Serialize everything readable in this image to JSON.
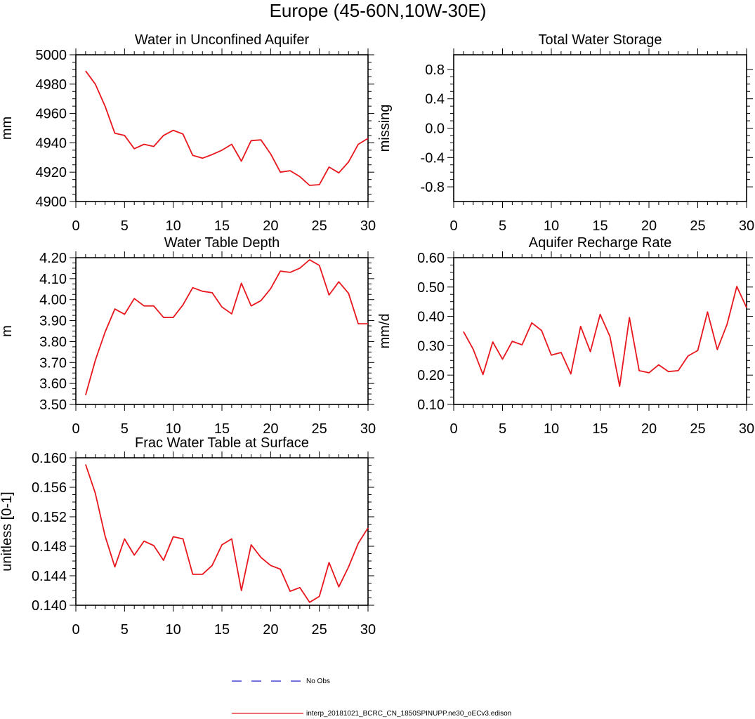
{
  "figure_title": "Europe (45-60N,10W-30E)",
  "colors": {
    "model_line": "#e8161d",
    "obs_line": "#1f1fd0",
    "axis": "#000000"
  },
  "legend": {
    "obs_label": "No Obs",
    "model_label": "interp_20181021_BCRC_CN_1850SPINUPP.ne30_oECv3.edison"
  },
  "chart_data": [
    {
      "type": "line",
      "title": "Water in Unconfined Aquifer",
      "ylabel": "mm",
      "xlim": [
        0,
        30
      ],
      "ylim": [
        4900,
        5000
      ],
      "xticks": [
        0,
        5,
        10,
        15,
        20,
        25,
        30
      ],
      "yticks": [
        4900,
        4920,
        4940,
        4960,
        4980,
        5000
      ],
      "ytick_labels": [
        "4900",
        "4920",
        "4940",
        "4960",
        "4980",
        "5000"
      ],
      "x": [
        1,
        2,
        3,
        4,
        5,
        6,
        7,
        8,
        9,
        10,
        11,
        12,
        13,
        14,
        15,
        16,
        17,
        18,
        19,
        20,
        21,
        22,
        23,
        24,
        25,
        26,
        27,
        28,
        29,
        30
      ],
      "series": [
        {
          "name": "model",
          "values": [
            4989,
            4980,
            4965,
            4946.5,
            4945,
            4936,
            4939,
            4937.5,
            4945,
            4948.5,
            4946,
            4931.5,
            4929.5,
            4932,
            4935,
            4939,
            4927.5,
            4941.5,
            4942,
            4932.5,
            4920,
            4921,
            4917,
            4911,
            4911.5,
            4923.5,
            4919.5,
            4927,
            4939,
            4943
          ]
        }
      ]
    },
    {
      "type": "line",
      "title": "Total Water Storage",
      "ylabel": "missing",
      "xlim": [
        0,
        30
      ],
      "ylim": [
        -1,
        1
      ],
      "xticks": [
        0,
        5,
        10,
        15,
        20,
        25,
        30
      ],
      "yticks": [
        -0.8,
        -0.4,
        0.0,
        0.4,
        0.8
      ],
      "ytick_labels": [
        "-0.8",
        "-0.4",
        "0.0",
        "0.4",
        "0.8"
      ],
      "x": [],
      "series": []
    },
    {
      "type": "line",
      "title": "Water Table Depth",
      "ylabel": "m",
      "xlim": [
        0,
        30
      ],
      "ylim": [
        3.5,
        4.2
      ],
      "xticks": [
        0,
        5,
        10,
        15,
        20,
        25,
        30
      ],
      "yticks": [
        3.5,
        3.6,
        3.7,
        3.8,
        3.9,
        4.0,
        4.1,
        4.2
      ],
      "ytick_labels": [
        "3.50",
        "3.60",
        "3.70",
        "3.80",
        "3.90",
        "4.00",
        "4.10",
        "4.20"
      ],
      "x": [
        1,
        2,
        3,
        4,
        5,
        6,
        7,
        8,
        9,
        10,
        11,
        12,
        13,
        14,
        15,
        16,
        17,
        18,
        19,
        20,
        21,
        22,
        23,
        24,
        25,
        26,
        27,
        28,
        29,
        30
      ],
      "series": [
        {
          "name": "model",
          "values": [
            3.545,
            3.71,
            3.845,
            3.955,
            3.93,
            4.005,
            3.97,
            3.97,
            3.915,
            3.915,
            3.975,
            4.057,
            4.04,
            4.033,
            3.965,
            3.932,
            4.078,
            3.97,
            3.995,
            4.052,
            4.136,
            4.13,
            4.15,
            4.19,
            4.163,
            4.022,
            4.085,
            4.03,
            3.885,
            3.885
          ]
        }
      ]
    },
    {
      "type": "line",
      "title": "Aquifer Recharge Rate",
      "ylabel": "mm/d",
      "xlim": [
        0,
        30
      ],
      "ylim": [
        0.1,
        0.6
      ],
      "xticks": [
        0,
        5,
        10,
        15,
        20,
        25,
        30
      ],
      "yticks": [
        0.1,
        0.2,
        0.3,
        0.4,
        0.5,
        0.6
      ],
      "ytick_labels": [
        "0.10",
        "0.20",
        "0.30",
        "0.40",
        "0.50",
        "0.60"
      ],
      "x": [
        1,
        2,
        3,
        4,
        5,
        6,
        7,
        8,
        9,
        10,
        11,
        12,
        13,
        14,
        15,
        16,
        17,
        18,
        19,
        20,
        21,
        22,
        23,
        24,
        25,
        26,
        27,
        28,
        29,
        30
      ],
      "series": [
        {
          "name": "model",
          "values": [
            0.348,
            0.288,
            0.202,
            0.313,
            0.254,
            0.315,
            0.303,
            0.378,
            0.352,
            0.268,
            0.277,
            0.204,
            0.366,
            0.28,
            0.407,
            0.332,
            0.162,
            0.396,
            0.215,
            0.208,
            0.235,
            0.212,
            0.215,
            0.265,
            0.284,
            0.415,
            0.287,
            0.373,
            0.502,
            0.43
          ]
        }
      ]
    },
    {
      "type": "line",
      "title": "Frac Water Table at Surface",
      "ylabel": "unitless [0-1]",
      "xlim": [
        0,
        30
      ],
      "ylim": [
        0.14,
        0.16
      ],
      "xticks": [
        0,
        5,
        10,
        15,
        20,
        25,
        30
      ],
      "yticks": [
        0.14,
        0.144,
        0.148,
        0.152,
        0.156,
        0.16
      ],
      "ytick_labels": [
        "0.140",
        "0.144",
        "0.148",
        "0.152",
        "0.156",
        "0.160"
      ],
      "x": [
        1,
        2,
        3,
        4,
        5,
        6,
        7,
        8,
        9,
        10,
        11,
        12,
        13,
        14,
        15,
        16,
        17,
        18,
        19,
        20,
        21,
        22,
        23,
        24,
        25,
        26,
        27,
        28,
        29,
        30
      ],
      "series": [
        {
          "name": "model",
          "values": [
            0.1591,
            0.1552,
            0.1494,
            0.1452,
            0.149,
            0.1468,
            0.1487,
            0.1481,
            0.1461,
            0.1493,
            0.149,
            0.1442,
            0.1442,
            0.1454,
            0.1482,
            0.149,
            0.142,
            0.1482,
            0.1465,
            0.1454,
            0.1449,
            0.1419,
            0.1424,
            0.1404,
            0.1412,
            0.1458,
            0.1425,
            0.1452,
            0.1484,
            0.1505
          ]
        }
      ]
    }
  ]
}
